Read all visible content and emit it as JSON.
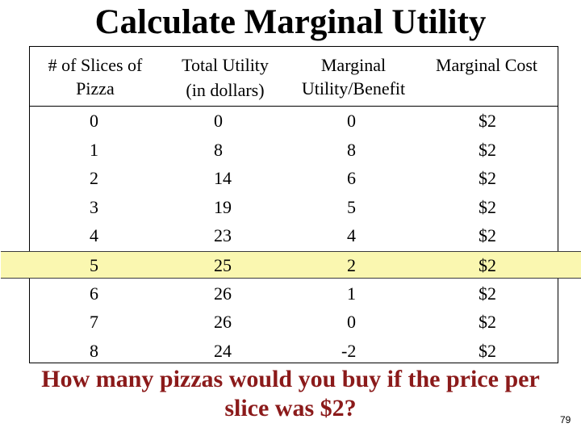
{
  "title": "Calculate Marginal Utility",
  "table": {
    "headers": {
      "slices_line1": "# of Slices of",
      "slices_line2": "Pizza",
      "total_line1": "Total Utility",
      "total_line2": "(in dollars)",
      "marginal_line1": "Marginal",
      "marginal_line2": "Utility/Benefit",
      "cost": "Marginal Cost"
    },
    "rows": [
      {
        "slices": "0",
        "total": "0",
        "marginal": "0",
        "cost": "$2"
      },
      {
        "slices": "1",
        "total": "8",
        "marginal": "8",
        "cost": "$2"
      },
      {
        "slices": "2",
        "total": "14",
        "marginal": "6",
        "cost": "$2"
      },
      {
        "slices": "3",
        "total": "19",
        "marginal": "5",
        "cost": "$2"
      },
      {
        "slices": "4",
        "total": "23",
        "marginal": "4",
        "cost": "$2"
      },
      {
        "slices": "5",
        "total": "25",
        "marginal": "2",
        "cost": "$2"
      },
      {
        "slices": "6",
        "total": "26",
        "marginal": "1",
        "cost": "$2"
      },
      {
        "slices": "7",
        "total": "26",
        "marginal": "0",
        "cost": "$2"
      },
      {
        "slices": "8",
        "total": "24",
        "marginal": "-2",
        "cost": "$2"
      }
    ],
    "highlight_color": "#faf7b0"
  },
  "question": "How many pizzas would you buy if the price per slice was $2?",
  "page_number": "79",
  "colors": {
    "question_text": "#8b1a1a"
  }
}
